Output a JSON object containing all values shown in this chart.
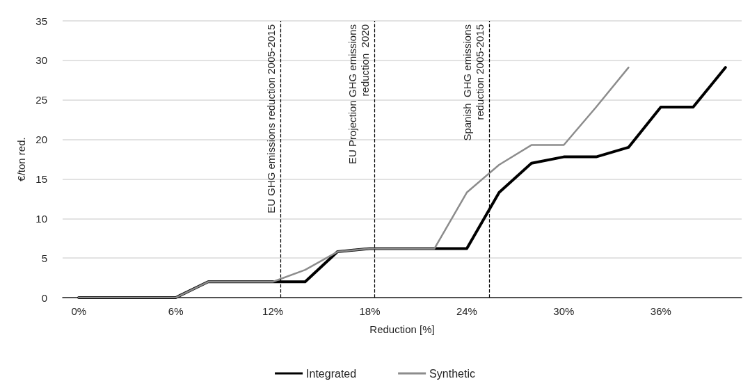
{
  "chart_data": {
    "type": "line",
    "xlabel": "Reduction [%]",
    "ylabel": "€/ton red.",
    "xlim": [
      -1,
      41
    ],
    "xticks": [
      {
        "value": 0,
        "label": "0%"
      },
      {
        "value": 6,
        "label": "6%"
      },
      {
        "value": 12,
        "label": "12%"
      },
      {
        "value": 18,
        "label": "18%"
      },
      {
        "value": 24,
        "label": "24%"
      },
      {
        "value": 30,
        "label": "30%"
      },
      {
        "value": 36,
        "label": "36%"
      }
    ],
    "ylim": [
      0,
      35
    ],
    "yticks": [
      0,
      5,
      10,
      15,
      20,
      25,
      30,
      35
    ],
    "grid": "y",
    "legend": "bottom",
    "marker": "none",
    "line_style": "solid",
    "series": [
      {
        "name": "Integrated",
        "color": "#000000",
        "x": [
          0,
          2,
          4,
          6,
          8,
          10,
          12,
          14,
          16,
          18,
          20,
          22,
          24,
          26,
          28,
          30,
          32,
          34,
          36,
          38,
          40
        ],
        "values": [
          0,
          0,
          0,
          0,
          2,
          2,
          2,
          2,
          5.8,
          6.2,
          6.2,
          6.2,
          6.2,
          13.3,
          17,
          17.8,
          17.8,
          19,
          24.1,
          24.1,
          29.1
        ]
      },
      {
        "name": "Synthetic",
        "color": "#8c8c8c",
        "x": [
          0,
          2,
          4,
          6,
          8,
          10,
          12,
          14,
          16,
          18,
          20,
          22,
          24,
          26,
          28,
          30,
          32,
          34
        ],
        "values": [
          0,
          0,
          0,
          0,
          2,
          2,
          2,
          3.5,
          5.8,
          6.2,
          6.2,
          6.2,
          13.3,
          16.8,
          19.3,
          19.3,
          24.1,
          29.1
        ]
      }
    ],
    "ref_lines": [
      {
        "axis": "x",
        "value": 12.5,
        "label": "EU GHG emissions reduction 2005-2015",
        "line_style": "dashed",
        "color": "#000000"
      },
      {
        "axis": "x",
        "value": 18.3,
        "label": "EU Projection GHG emissions\nreduction  2020",
        "line_style": "dashed",
        "color": "#000000"
      },
      {
        "axis": "x",
        "value": 25.4,
        "label": "Spanish  GHG emissions\nreduction 2005-2015",
        "line_style": "dashed",
        "color": "#000000"
      }
    ]
  }
}
